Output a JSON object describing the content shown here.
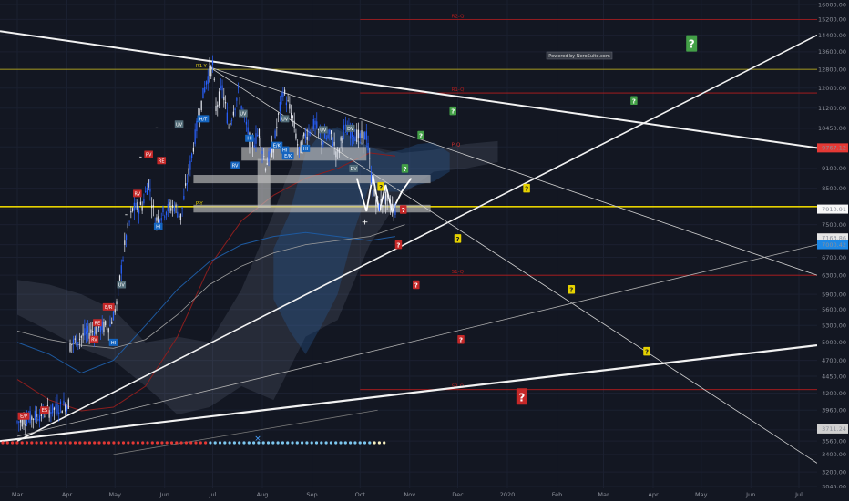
{
  "chart_data": {
    "type": "candlestick",
    "title": "",
    "y_axis": {
      "scale": "log",
      "ticks": [
        "16000.00",
        "15200.00",
        "14400.00",
        "13600.00",
        "12800.00",
        "12000.00",
        "11200.00",
        "10450.00",
        "9800.00",
        "9100.00",
        "8500.00",
        "7900.00",
        "7500.00",
        "7000.00",
        "6700.00",
        "6300.00",
        "5900.00",
        "5600.00",
        "5300.00",
        "5000.00",
        "4700.00",
        "4450.00",
        "4200.00",
        "3960.00",
        "3700.00",
        "3560.00",
        "3400.00",
        "3200.00",
        "3045.00"
      ]
    },
    "x_axis": {
      "ticks": [
        "Mar",
        "Apr",
        "May",
        "Jun",
        "Jul",
        "Aug",
        "Sep",
        "Oct",
        "Nov",
        "Dec",
        "2020",
        "Feb",
        "Mar",
        "Apr",
        "May",
        "Jun",
        "Jul"
      ]
    },
    "price_labels": [
      {
        "text": "9767.12",
        "price": 9767.12,
        "color": "#e53935"
      },
      {
        "text": "7910.91",
        "price": 7910.91,
        "color": "#f7f7f7"
      },
      {
        "text": "7163.86",
        "price": 7163.86,
        "color": "#e6e6e6"
      },
      {
        "text": "7000.42",
        "price": 7000.42,
        "color": "#1e88e5"
      },
      {
        "text": "3711.24",
        "price": 3711.24,
        "color": "#d0d0d0"
      }
    ],
    "pivot_levels": [
      {
        "label": "R2-Q",
        "price": 15200,
        "color": "#b71c1c",
        "x_start": "2019-10-01",
        "x_end": "2020-07-31"
      },
      {
        "label": "R1-Y",
        "price": 12800,
        "color": "#d4c21c",
        "x_start": "2019-02-15",
        "x_end": "2020-07-31"
      },
      {
        "label": "R1-Q",
        "price": 11800,
        "color": "#b71c1c",
        "x_start": "2019-10-01",
        "x_end": "2020-07-31"
      },
      {
        "label": "P-Q",
        "price": 9767,
        "color": "#d32f2f",
        "x_start": "2019-10-01",
        "x_end": "2020-07-31"
      },
      {
        "label": "P-Y",
        "price": 7980,
        "color": "#e6d200",
        "x_start": "2019-02-15",
        "x_end": "2020-07-31"
      },
      {
        "label": "S1-Q",
        "price": 6300,
        "color": "#b71c1c",
        "x_start": "2019-10-01",
        "x_end": "2020-07-31"
      },
      {
        "label": "S2-Q",
        "price": 4250,
        "color": "#b71c1c",
        "x_start": "2019-10-01",
        "x_end": "2020-07-31"
      }
    ],
    "pattern_tags": [
      {
        "text": "E/P",
        "date": "2019-03-05",
        "price": 3880,
        "color": "#c62828"
      },
      {
        "text": "ES",
        "date": "2019-03-18",
        "price": 3960,
        "color": "#c62828"
      },
      {
        "text": "RE",
        "date": "2019-04-20",
        "price": 5350,
        "color": "#c62828"
      },
      {
        "text": "E/R",
        "date": "2019-04-27",
        "price": 5650,
        "color": "#c62828"
      },
      {
        "text": "HI",
        "date": "2019-04-30",
        "price": 5000,
        "color": "#1565c0"
      },
      {
        "text": "RV",
        "date": "2019-04-18",
        "price": 5050,
        "color": "#c62828"
      },
      {
        "text": "UV",
        "date": "2019-05-05",
        "price": 6100,
        "color": "#546e7a"
      },
      {
        "text": "RV",
        "date": "2019-05-15",
        "price": 8350,
        "color": "#c62828"
      },
      {
        "text": "RV",
        "date": "2019-05-22",
        "price": 9550,
        "color": "#c62828"
      },
      {
        "text": "RE",
        "date": "2019-05-30",
        "price": 9350,
        "color": "#c62828"
      },
      {
        "text": "HI",
        "date": "2019-05-28",
        "price": 7450,
        "color": "#1565c0"
      },
      {
        "text": "UV",
        "date": "2019-06-10",
        "price": 10600,
        "color": "#546e7a"
      },
      {
        "text": "H/T",
        "date": "2019-06-25",
        "price": 10800,
        "color": "#1565c0"
      },
      {
        "text": "UV",
        "date": "2019-07-20",
        "price": 11000,
        "color": "#546e7a"
      },
      {
        "text": "HI",
        "date": "2019-07-24",
        "price": 10100,
        "color": "#1565c0"
      },
      {
        "text": "RV",
        "date": "2019-07-15",
        "price": 9200,
        "color": "#1565c0"
      },
      {
        "text": "UV",
        "date": "2019-08-15",
        "price": 10800,
        "color": "#546e7a"
      },
      {
        "text": "E/K",
        "date": "2019-08-10",
        "price": 9850,
        "color": "#1565c0"
      },
      {
        "text": "E/K",
        "date": "2019-08-17",
        "price": 9500,
        "color": "#1565c0"
      },
      {
        "text": "HI",
        "date": "2019-08-15",
        "price": 9700,
        "color": "#1565c0"
      },
      {
        "text": "HI",
        "date": "2019-08-28",
        "price": 9750,
        "color": "#1565c0"
      },
      {
        "text": "UV",
        "date": "2019-09-08",
        "price": 10400,
        "color": "#546e7a"
      },
      {
        "text": "DV",
        "date": "2019-09-25",
        "price": 10450,
        "color": "#546e7a"
      },
      {
        "text": "DV",
        "date": "2019-09-27",
        "price": 9100,
        "color": "#546e7a"
      }
    ],
    "question_marks": [
      {
        "date": "2019-10-14",
        "price": 8550,
        "color": "#e6d200",
        "size": "s"
      },
      {
        "date": "2019-10-28",
        "price": 7900,
        "color": "#c62828",
        "size": "s"
      },
      {
        "date": "2019-10-25",
        "price": 7000,
        "color": "#c62828",
        "size": "s"
      },
      {
        "date": "2019-11-05",
        "price": 6100,
        "color": "#c62828",
        "size": "s"
      },
      {
        "date": "2019-10-29",
        "price": 9100,
        "color": "#43a047",
        "size": "s"
      },
      {
        "date": "2019-11-08",
        "price": 10200,
        "color": "#43a047",
        "size": "s"
      },
      {
        "date": "2019-11-28",
        "price": 11100,
        "color": "#43a047",
        "size": "s"
      },
      {
        "date": "2019-12-03",
        "price": 5050,
        "color": "#c62828",
        "size": "s"
      },
      {
        "date": "2019-12-01",
        "price": 7150,
        "color": "#e6d200",
        "size": "s"
      },
      {
        "date": "2020-01-13",
        "price": 8500,
        "color": "#e6d200",
        "size": "s"
      },
      {
        "date": "2020-01-10",
        "price": 4150,
        "color": "#c62828",
        "size": "l"
      },
      {
        "date": "2020-02-10",
        "price": 6000,
        "color": "#e6d200",
        "size": "s"
      },
      {
        "date": "2020-03-20",
        "price": 11500,
        "color": "#43a047",
        "size": "s"
      },
      {
        "date": "2020-03-28",
        "price": 4850,
        "color": "#e6d200",
        "size": "s"
      },
      {
        "date": "2020-04-25",
        "price": 14000,
        "color": "#43a047",
        "size": "l"
      }
    ],
    "watermark": "Powered by NeroSuite.com"
  }
}
